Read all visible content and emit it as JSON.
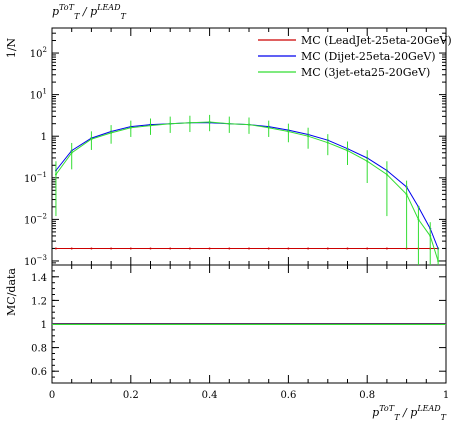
{
  "chart_data": {
    "type": "line",
    "title": "p_T^{ToT}/p_T^{LEAD}",
    "xlabel": "p_T^{ToT}/p_T^{LEAD}",
    "ylabel_main": "1/N",
    "ylabel_ratio": "MC/data",
    "xlim": [
      0,
      1
    ],
    "ylim_main": [
      0.0008,
      400
    ],
    "yscale_main": "log",
    "ylim_ratio": [
      0.5,
      1.5
    ],
    "legend_position": "top-right",
    "x_ticks": [
      "0",
      "0.2",
      "0.4",
      "0.6",
      "0.8",
      "1"
    ],
    "y_ticks_main": [
      {
        "base": "10",
        "exp": "−3",
        "value": 0.001
      },
      {
        "base": "10",
        "exp": "−2",
        "value": 0.01
      },
      {
        "base": "10",
        "exp": "−1",
        "value": 0.1
      },
      {
        "base": "1",
        "exp": "",
        "value": 1
      },
      {
        "base": "10",
        "exp": "1",
        "value": 10
      },
      {
        "base": "10",
        "exp": "2",
        "value": 100
      }
    ],
    "y_ticks_ratio": [
      "0.6",
      "0.8",
      "1",
      "1.2",
      "1.4"
    ],
    "x": [
      0.01,
      0.05,
      0.1,
      0.15,
      0.2,
      0.25,
      0.3,
      0.35,
      0.4,
      0.45,
      0.5,
      0.55,
      0.6,
      0.65,
      0.7,
      0.75,
      0.8,
      0.85,
      0.9,
      0.93,
      0.96,
      0.98
    ],
    "series": [
      {
        "name": "MC (LeadJet-25eta-20GeV)",
        "color": "#cc0000",
        "values": [
          0.002,
          0.002,
          0.002,
          0.002,
          0.002,
          0.002,
          0.002,
          0.002,
          0.002,
          0.002,
          0.002,
          0.002,
          0.002,
          0.002,
          0.002,
          0.002,
          0.002,
          0.002,
          0.002,
          0.002,
          0.002,
          0.002
        ],
        "ratio": 1.0
      },
      {
        "name": "MC (Dijet-25eta-20GeV)",
        "color": "#0000ee",
        "values": [
          0.15,
          0.45,
          0.9,
          1.3,
          1.7,
          1.9,
          2.0,
          2.1,
          2.1,
          2.0,
          1.9,
          1.7,
          1.4,
          1.1,
          0.8,
          0.5,
          0.3,
          0.15,
          0.06,
          0.02,
          0.006,
          0.002
        ],
        "ratio": 1.0
      },
      {
        "name": "MC (3jet-eta25-20GeV)",
        "color": "#33dd33",
        "values": [
          0.12,
          0.4,
          0.85,
          1.2,
          1.6,
          1.8,
          2.0,
          2.1,
          2.2,
          2.0,
          1.9,
          1.6,
          1.3,
          1.0,
          0.7,
          0.45,
          0.25,
          0.12,
          0.04,
          0.01,
          0.004,
          0.001
        ],
        "rel_err": [
          0.9,
          0.6,
          0.45,
          0.45,
          0.4,
          0.4,
          0.4,
          0.4,
          0.4,
          0.4,
          0.4,
          0.4,
          0.45,
          0.5,
          0.5,
          0.55,
          0.7,
          0.9,
          0.95,
          0.95,
          0.95,
          0.95
        ],
        "ratio": 1.0
      }
    ]
  }
}
